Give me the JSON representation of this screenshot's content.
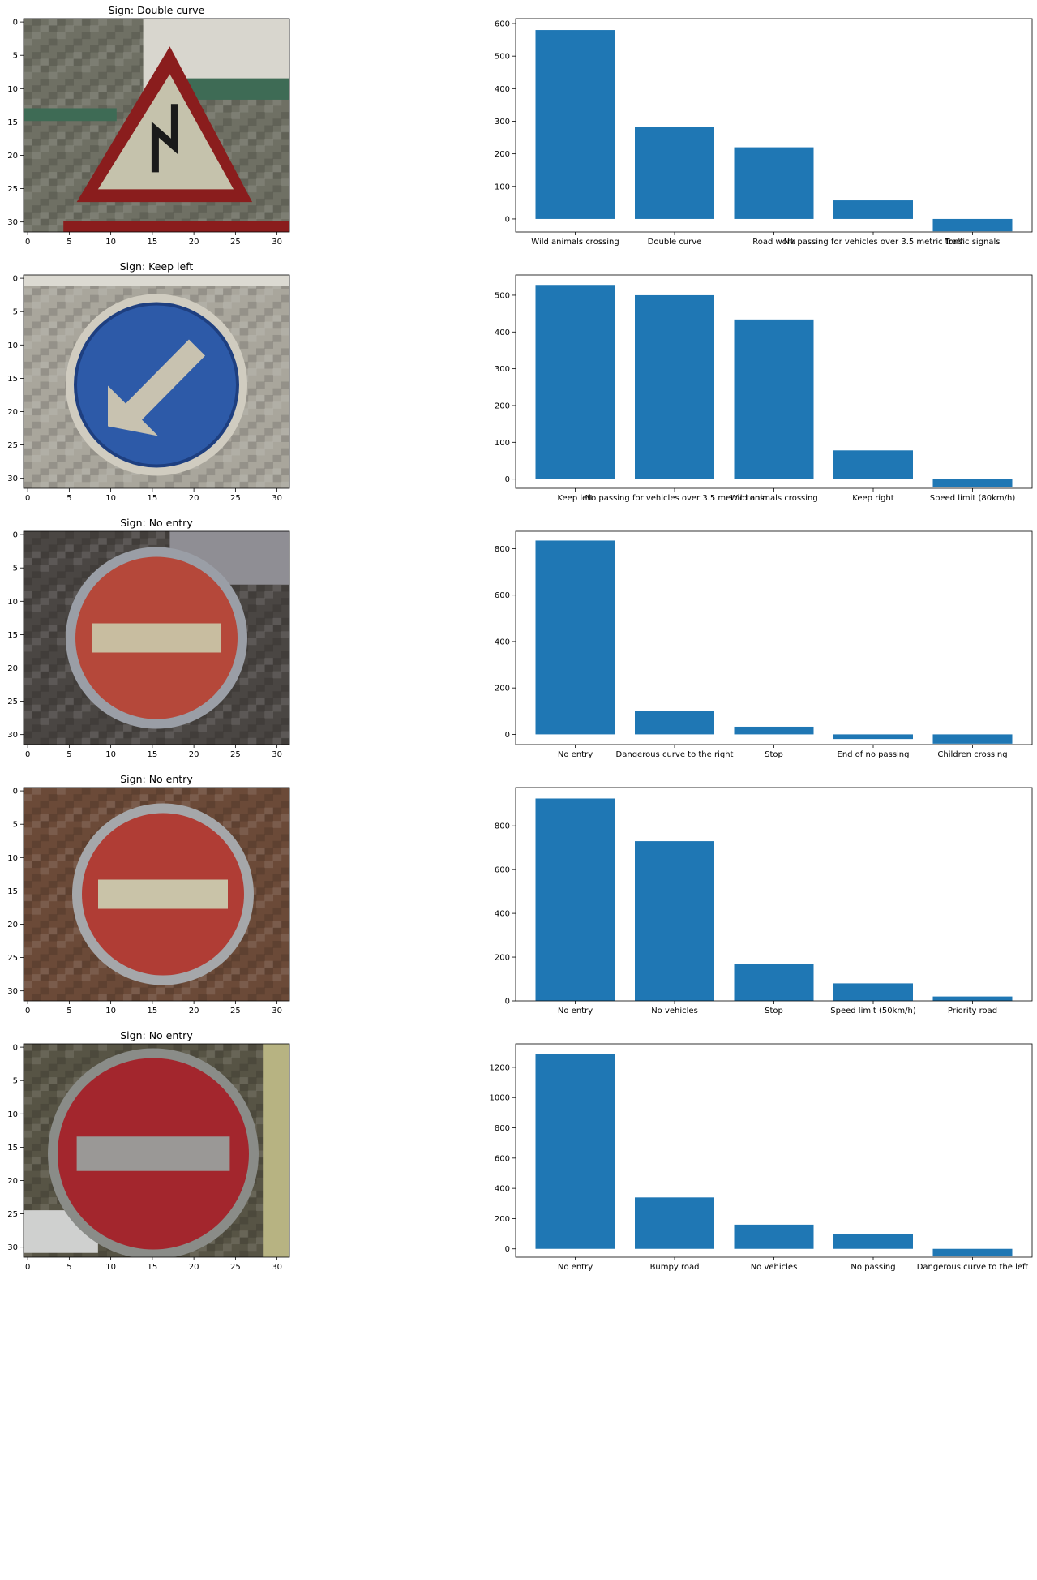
{
  "chart_data": [
    {
      "type": "image",
      "title": "Sign: Double curve",
      "sign_kind": "triangle",
      "colors": {
        "bg": "#6f7064",
        "sign": "#c5c2ac",
        "border": "#8a1d1d",
        "accent": "#3e6b55"
      },
      "x_ticks": [
        "0",
        "5",
        "10",
        "15",
        "20",
        "25",
        "30"
      ],
      "y_ticks": [
        "0",
        "5",
        "10",
        "15",
        "20",
        "25",
        "30"
      ],
      "xlim": [
        -0.5,
        31.5
      ],
      "ylim": [
        31.5,
        -0.5
      ]
    },
    {
      "type": "bar",
      "categories": [
        "Wild animals crossing",
        "Double curve",
        "Road work",
        "No passing for vehicles over 3.5 metric tons",
        "Traffic signals"
      ],
      "values": [
        580,
        282,
        220,
        57,
        -38
      ],
      "ylim": [
        -40,
        615
      ],
      "y_ticks": [
        0,
        100,
        200,
        300,
        400,
        500,
        600
      ],
      "color": "#1f77b4"
    },
    {
      "type": "image",
      "title": "Sign: Keep left",
      "sign_kind": "keep_left",
      "colors": {
        "bg": "#a9a69c",
        "sign": "#2d5aa8",
        "border": "#1e3f80",
        "accent": "#c8c2b0"
      },
      "x_ticks": [
        "0",
        "5",
        "10",
        "15",
        "20",
        "25",
        "30"
      ],
      "y_ticks": [
        "0",
        "5",
        "10",
        "15",
        "20",
        "25",
        "30"
      ],
      "xlim": [
        -0.5,
        31.5
      ],
      "ylim": [
        31.5,
        -0.5
      ]
    },
    {
      "type": "bar",
      "categories": [
        "Keep left",
        "No passing for vehicles over 3.5 metric tons",
        "Wild animals crossing",
        "Keep right",
        "Speed limit (80km/h)"
      ],
      "values": [
        528,
        500,
        434,
        78,
        -22
      ],
      "ylim": [
        -25,
        555
      ],
      "y_ticks": [
        0,
        100,
        200,
        300,
        400,
        500
      ],
      "color": "#1f77b4"
    },
    {
      "type": "image",
      "title": "Sign: No entry",
      "sign_kind": "no_entry",
      "colors": {
        "bg": "#4a4643",
        "sign": "#b5483a",
        "border": "#9a9ea6",
        "accent": "#c8bda0"
      },
      "x_ticks": [
        "0",
        "5",
        "10",
        "15",
        "20",
        "25",
        "30"
      ],
      "y_ticks": [
        "0",
        "5",
        "10",
        "15",
        "20",
        "25",
        "30"
      ],
      "xlim": [
        -0.5,
        31.5
      ],
      "ylim": [
        31.5,
        -0.5
      ]
    },
    {
      "type": "bar",
      "categories": [
        "No entry",
        "Dangerous curve to the right",
        "Stop",
        "End of no passing",
        "Children crossing"
      ],
      "values": [
        835,
        100,
        33,
        -20,
        -40
      ],
      "ylim": [
        -44,
        875
      ],
      "y_ticks": [
        0,
        200,
        400,
        600,
        800
      ],
      "color": "#1f77b4"
    },
    {
      "type": "image",
      "title": "Sign: No entry",
      "sign_kind": "no_entry_left",
      "colors": {
        "bg": "#6b4a38",
        "sign": "#b03d35",
        "border": "#a5a7aa",
        "accent": "#c9c3a8"
      },
      "x_ticks": [
        "0",
        "5",
        "10",
        "15",
        "20",
        "25",
        "30"
      ],
      "y_ticks": [
        "0",
        "5",
        "10",
        "15",
        "20",
        "25",
        "30"
      ],
      "xlim": [
        -0.5,
        31.5
      ],
      "ylim": [
        31.5,
        -0.5
      ]
    },
    {
      "type": "bar",
      "categories": [
        "No entry",
        "No vehicles",
        "Stop",
        "Speed limit (50km/h)",
        "Priority road"
      ],
      "values": [
        925,
        730,
        170,
        80,
        20
      ],
      "ylim": [
        0,
        975
      ],
      "y_ticks": [
        0,
        200,
        400,
        600,
        800
      ],
      "color": "#1f77b4"
    },
    {
      "type": "image",
      "title": "Sign: No entry",
      "sign_kind": "no_entry_big",
      "colors": {
        "bg": "#575445",
        "sign": "#a3262d",
        "border": "#8a8c88",
        "accent": "#9a9896"
      },
      "x_ticks": [
        "0",
        "5",
        "10",
        "15",
        "20",
        "25",
        "30"
      ],
      "y_ticks": [
        "0",
        "5",
        "10",
        "15",
        "20",
        "25",
        "30"
      ],
      "xlim": [
        -0.5,
        31.5
      ],
      "ylim": [
        31.5,
        -0.5
      ]
    },
    {
      "type": "bar",
      "categories": [
        "No entry",
        "Bumpy road",
        "No vehicles",
        "No passing",
        "Dangerous curve to the left"
      ],
      "values": [
        1290,
        340,
        160,
        100,
        -50
      ],
      "ylim": [
        -55,
        1355
      ],
      "y_ticks": [
        0,
        200,
        400,
        600,
        800,
        1000,
        1200
      ],
      "color": "#1f77b4"
    }
  ]
}
